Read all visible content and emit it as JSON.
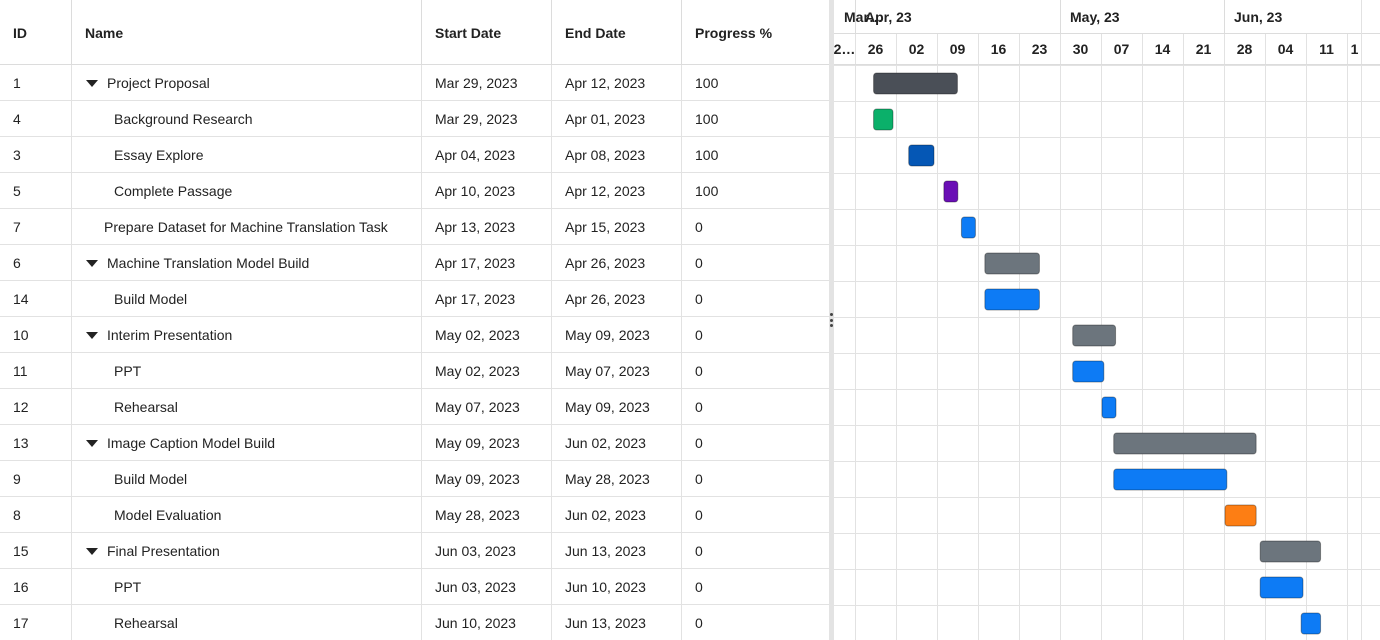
{
  "columns": {
    "id": "ID",
    "name": "Name",
    "start": "Start Date",
    "end": "End Date",
    "progress": "Progress %"
  },
  "rows": [
    {
      "id": "1",
      "name": "Project Proposal",
      "start": "Mar 29, 2023",
      "end": "Apr 12, 2023",
      "progress": "100",
      "level": 0,
      "expandable": true
    },
    {
      "id": "4",
      "name": "Background Research",
      "start": "Mar 29, 2023",
      "end": "Apr 01, 2023",
      "progress": "100",
      "level": 1,
      "expandable": false
    },
    {
      "id": "3",
      "name": "Essay Explore",
      "start": "Apr 04, 2023",
      "end": "Apr 08, 2023",
      "progress": "100",
      "level": 1,
      "expandable": false
    },
    {
      "id": "5",
      "name": "Complete Passage",
      "start": "Apr 10, 2023",
      "end": "Apr 12, 2023",
      "progress": "100",
      "level": 1,
      "expandable": false
    },
    {
      "id": "7",
      "name": "Prepare Dataset for Machine Translation Task",
      "start": "Apr 13, 2023",
      "end": "Apr 15, 2023",
      "progress": "0",
      "level": 0,
      "expandable": false
    },
    {
      "id": "6",
      "name": "Machine Translation Model Build",
      "start": "Apr 17, 2023",
      "end": "Apr 26, 2023",
      "progress": "0",
      "level": 0,
      "expandable": true
    },
    {
      "id": "14",
      "name": "Build Model",
      "start": "Apr 17, 2023",
      "end": "Apr 26, 2023",
      "progress": "0",
      "level": 1,
      "expandable": false
    },
    {
      "id": "10",
      "name": "Interim Presentation",
      "start": "May 02, 2023",
      "end": "May 09, 2023",
      "progress": "0",
      "level": 0,
      "expandable": true
    },
    {
      "id": "11",
      "name": "PPT",
      "start": "May 02, 2023",
      "end": "May 07, 2023",
      "progress": "0",
      "level": 1,
      "expandable": false
    },
    {
      "id": "12",
      "name": "Rehearsal",
      "start": "May 07, 2023",
      "end": "May 09, 2023",
      "progress": "0",
      "level": 1,
      "expandable": false
    },
    {
      "id": "13",
      "name": "Image Caption Model Build",
      "start": "May 09, 2023",
      "end": "Jun 02, 2023",
      "progress": "0",
      "level": 0,
      "expandable": true
    },
    {
      "id": "9",
      "name": "Build Model",
      "start": "May 09, 2023",
      "end": "May 28, 2023",
      "progress": "0",
      "level": 1,
      "expandable": false
    },
    {
      "id": "8",
      "name": "Model Evaluation",
      "start": "May 28, 2023",
      "end": "Jun 02, 2023",
      "progress": "0",
      "level": 1,
      "expandable": false
    },
    {
      "id": "15",
      "name": "Final Presentation",
      "start": "Jun 03, 2023",
      "end": "Jun 13, 2023",
      "progress": "0",
      "level": 0,
      "expandable": true
    },
    {
      "id": "16",
      "name": "PPT",
      "start": "Jun 03, 2023",
      "end": "Jun 10, 2023",
      "progress": "0",
      "level": 1,
      "expandable": false
    },
    {
      "id": "17",
      "name": "Rehearsal",
      "start": "Jun 10, 2023",
      "end": "Jun 13, 2023",
      "progress": "0",
      "level": 1,
      "expandable": false
    }
  ],
  "timeline": {
    "months": [
      {
        "label": "Mar…",
        "start": "2023-03-19"
      },
      {
        "label": "Apr, 23",
        "start": "2023-03-26"
      },
      {
        "label": "May, 23",
        "start": "2023-04-30"
      },
      {
        "label": "Jun, 23",
        "start": "2023-05-28"
      }
    ],
    "weeks": [
      {
        "label": "2…",
        "start": "2023-03-19"
      },
      {
        "label": "26",
        "start": "2023-03-26"
      },
      {
        "label": "02",
        "start": "2023-04-02"
      },
      {
        "label": "09",
        "start": "2023-04-09"
      },
      {
        "label": "16",
        "start": "2023-04-16"
      },
      {
        "label": "23",
        "start": "2023-04-23"
      },
      {
        "label": "30",
        "start": "2023-04-30"
      },
      {
        "label": "07",
        "start": "2023-05-07"
      },
      {
        "label": "14",
        "start": "2023-05-14"
      },
      {
        "label": "21",
        "start": "2023-05-21"
      },
      {
        "label": "28",
        "start": "2023-05-28"
      },
      {
        "label": "04",
        "start": "2023-06-04"
      },
      {
        "label": "11",
        "start": "2023-06-11"
      },
      {
        "label": "1",
        "start": "2023-06-18"
      }
    ]
  },
  "bar_colors": {
    "parent_dark": "#4a4f57",
    "parent": "#6c757d",
    "4": "#0bb06a",
    "3": "#0557b5",
    "5": "#6a0fb5",
    "7": "#0d7bf5",
    "14": "#0d7bf5",
    "11": "#0d7bf5",
    "12": "#0d7bf5",
    "9": "#0d7bf5",
    "8": "#fd7e14",
    "16": "#0d7bf5",
    "17": "#0d7bf5"
  }
}
